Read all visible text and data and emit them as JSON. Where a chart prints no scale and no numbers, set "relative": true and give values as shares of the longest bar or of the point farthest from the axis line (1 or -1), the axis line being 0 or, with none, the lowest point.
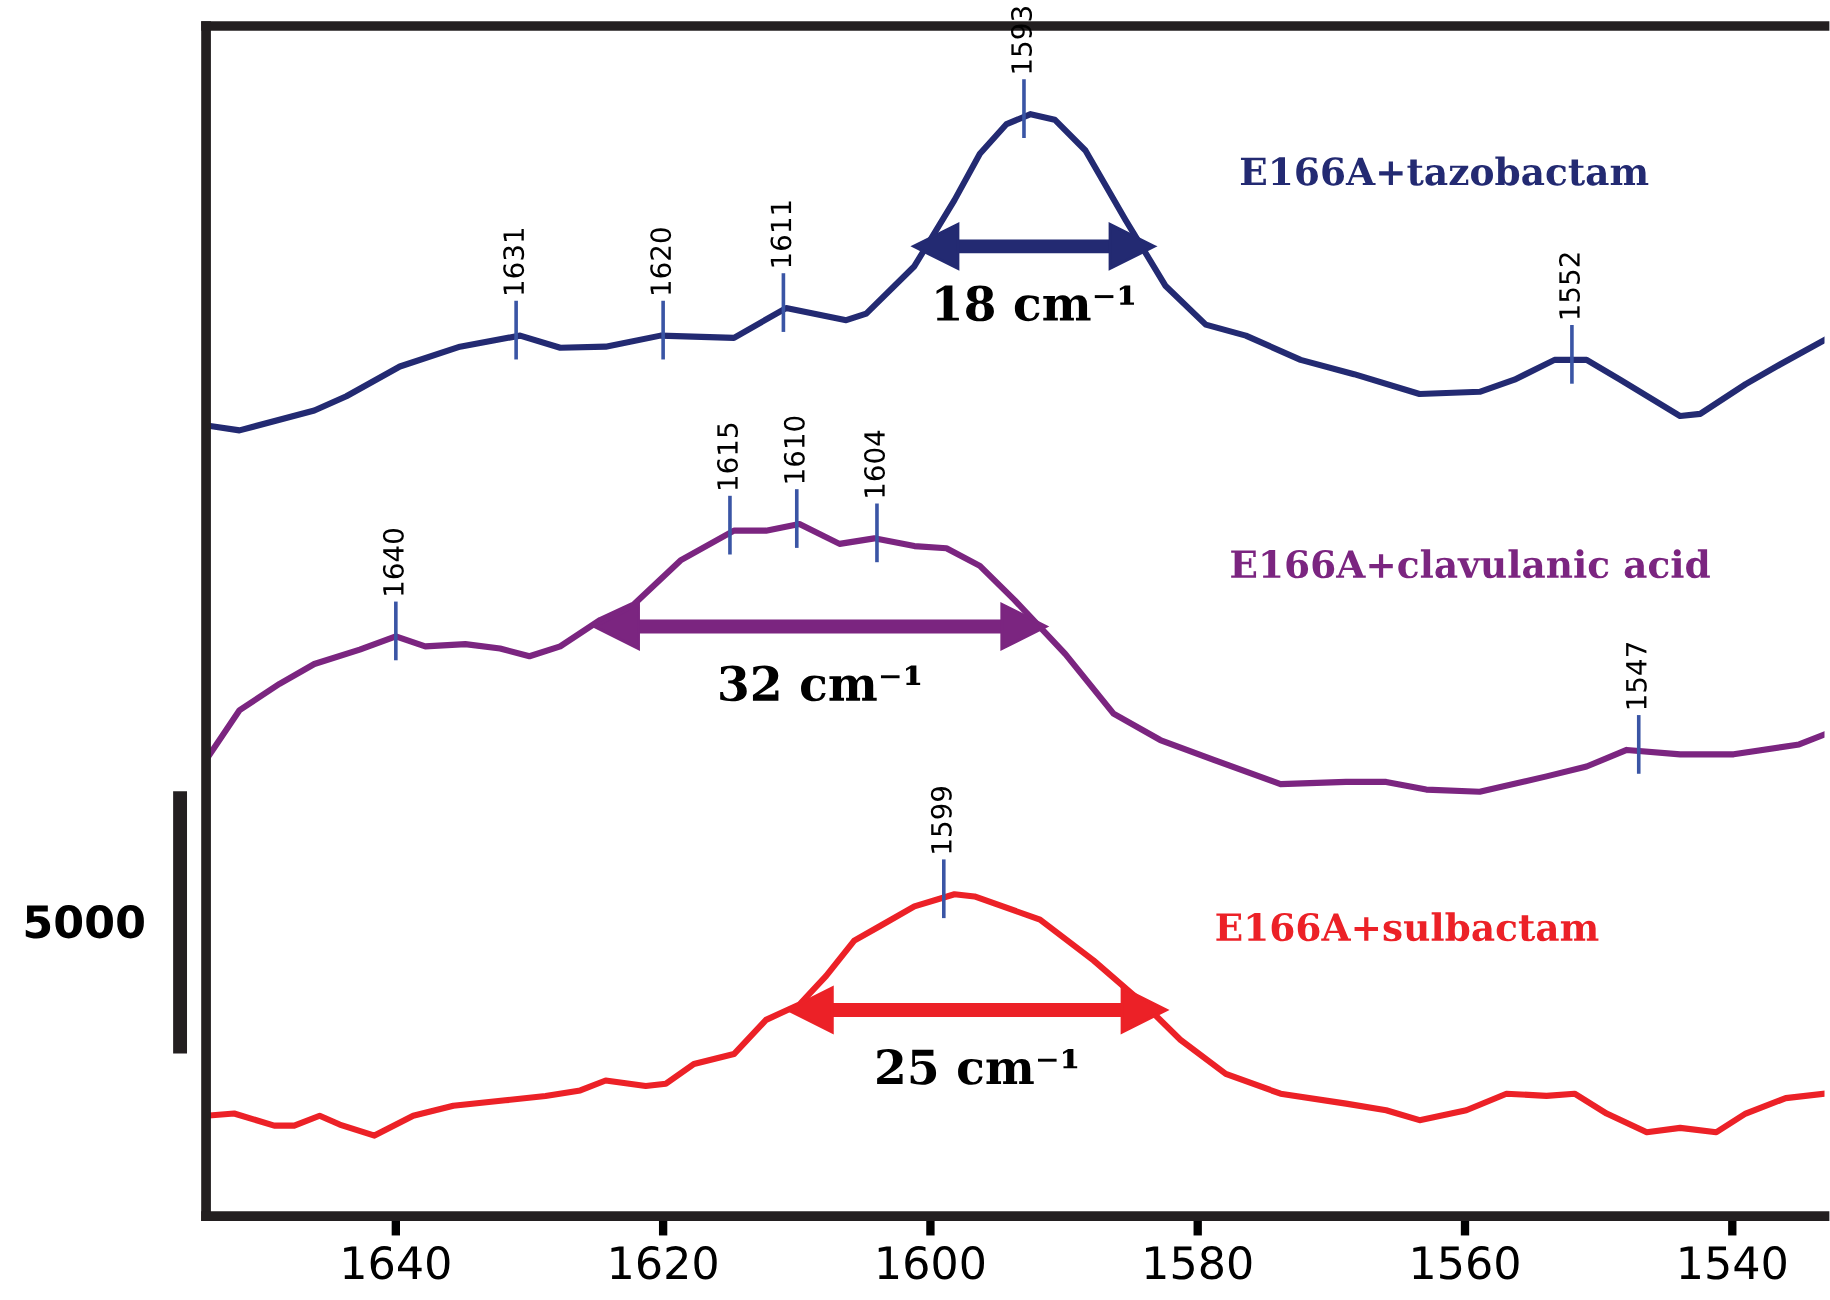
{
  "chart_data": {
    "type": "line",
    "relative": true,
    "xlim": [
      1654.2,
      1533.1
    ],
    "xticks": [
      1640,
      1620,
      1600,
      1580,
      1560,
      1540
    ],
    "tick_labels": "x",
    "legend": false,
    "series": [
      {
        "name": "E166A+tazobactam",
        "color": "#232a72",
        "x": [
          1653.9,
          1651.7,
          1646.1,
          1643.7,
          1639.7,
          1635.2,
          1630.7,
          1627.7,
          1624.3,
          1620.2,
          1614.7,
          1610.8,
          1606.3,
          1604.8,
          1601.2,
          1598.2,
          1596.3,
          1594.3,
          1592.5,
          1590.7,
          1588.4,
          1585.4,
          1582.4,
          1579.4,
          1576.4,
          1572.3,
          1568.3,
          1563.4,
          1558.9,
          1556.3,
          1553.3,
          1550.9,
          1548.4,
          1543.9,
          1542.4,
          1539.0,
          1536.4,
          1533.1
        ],
        "values": [
          0.717,
          0.713,
          0.731,
          0.744,
          0.771,
          0.789,
          0.799,
          0.788,
          0.789,
          0.799,
          0.797,
          0.824,
          0.813,
          0.819,
          0.862,
          0.922,
          0.964,
          0.991,
          1.0,
          0.995,
          0.967,
          0.904,
          0.844,
          0.809,
          0.799,
          0.777,
          0.764,
          0.746,
          0.748,
          0.759,
          0.777,
          0.777,
          0.759,
          0.726,
          0.728,
          0.755,
          0.773,
          0.795
        ]
      },
      {
        "name": "E166A+clavulanic acid",
        "color": "#7b2580",
        "x": [
          1654.2,
          1651.7,
          1648.7,
          1646.1,
          1642.7,
          1640.0,
          1637.8,
          1634.8,
          1632.2,
          1630.0,
          1627.7,
          1624.7,
          1622.2,
          1618.7,
          1614.7,
          1612.3,
          1609.8,
          1606.8,
          1604.2,
          1601.2,
          1598.8,
          1596.3,
          1593.7,
          1589.9,
          1586.3,
          1582.8,
          1578.8,
          1573.8,
          1568.9,
          1565.9,
          1562.9,
          1558.9,
          1553.9,
          1550.9,
          1547.9,
          1543.9,
          1539.9,
          1535.0,
          1533.1
        ],
        "values": [
          0.414,
          0.459,
          0.483,
          0.501,
          0.514,
          0.526,
          0.517,
          0.519,
          0.515,
          0.508,
          0.517,
          0.541,
          0.555,
          0.595,
          0.622,
          0.622,
          0.628,
          0.61,
          0.615,
          0.608,
          0.606,
          0.59,
          0.559,
          0.51,
          0.456,
          0.432,
          0.414,
          0.392,
          0.394,
          0.394,
          0.387,
          0.385,
          0.399,
          0.408,
          0.423,
          0.419,
          0.419,
          0.428,
          0.437
        ]
      },
      {
        "name": "E166A+sulbactam",
        "color": "#ec2127",
        "x": [
          1654.2,
          1652.1,
          1649.1,
          1647.6,
          1645.7,
          1644.2,
          1641.6,
          1638.7,
          1635.7,
          1631.8,
          1628.8,
          1626.2,
          1624.3,
          1621.3,
          1619.8,
          1617.7,
          1614.7,
          1612.3,
          1609.8,
          1607.8,
          1605.7,
          1603.8,
          1601.2,
          1598.2,
          1596.7,
          1591.8,
          1587.8,
          1583.9,
          1581.3,
          1577.9,
          1573.8,
          1568.9,
          1565.9,
          1563.4,
          1559.9,
          1556.9,
          1553.9,
          1551.8,
          1549.4,
          1546.4,
          1543.9,
          1541.2,
          1539.0,
          1536.0,
          1533.1
        ],
        "values": [
          0.091,
          0.093,
          0.082,
          0.082,
          0.091,
          0.083,
          0.073,
          0.091,
          0.1,
          0.105,
          0.109,
          0.114,
          0.123,
          0.118,
          0.12,
          0.138,
          0.147,
          0.178,
          0.192,
          0.218,
          0.25,
          0.263,
          0.281,
          0.292,
          0.29,
          0.269,
          0.232,
          0.191,
          0.16,
          0.129,
          0.111,
          0.102,
          0.096,
          0.087,
          0.096,
          0.111,
          0.109,
          0.111,
          0.093,
          0.076,
          0.08,
          0.076,
          0.093,
          0.107,
          0.111
        ]
      },
      {
        "color": "#232a72",
        "marker": "triangle",
        "x": [
          1599.6,
          1584.9
        ],
        "values": [
          0.88,
          0.88
        ]
      },
      {
        "color": "#7b2580",
        "marker": "triangle",
        "x": [
          1623.5,
          1593.0
        ],
        "values": [
          0.535,
          0.535
        ]
      },
      {
        "color": "#ec2127",
        "marker": "triangle",
        "x": [
          1609.0,
          1584.0
        ],
        "values": [
          0.187,
          0.187
        ]
      }
    ],
    "annotations": [
      {
        "text": "1631",
        "x": 1631,
        "y": 0.799
      },
      {
        "text": "1620",
        "x": 1620,
        "y": 0.799
      },
      {
        "text": "1611",
        "x": 1611,
        "y": 0.824
      },
      {
        "text": "1593",
        "x": 1593,
        "y": 1.0
      },
      {
        "text": "1552",
        "x": 1552,
        "y": 0.777
      },
      {
        "text": "1640",
        "x": 1640,
        "y": 0.526
      },
      {
        "text": "1615",
        "x": 1615,
        "y": 0.622
      },
      {
        "text": "1610",
        "x": 1610,
        "y": 0.628
      },
      {
        "text": "1604",
        "x": 1604,
        "y": 0.615
      },
      {
        "text": "1547",
        "x": 1547,
        "y": 0.423
      },
      {
        "text": "1599",
        "x": 1599,
        "y": 0.292
      },
      "5000",
      "18 cm⁻¹",
      "32 cm⁻¹",
      "25 cm⁻¹"
    ]
  }
}
